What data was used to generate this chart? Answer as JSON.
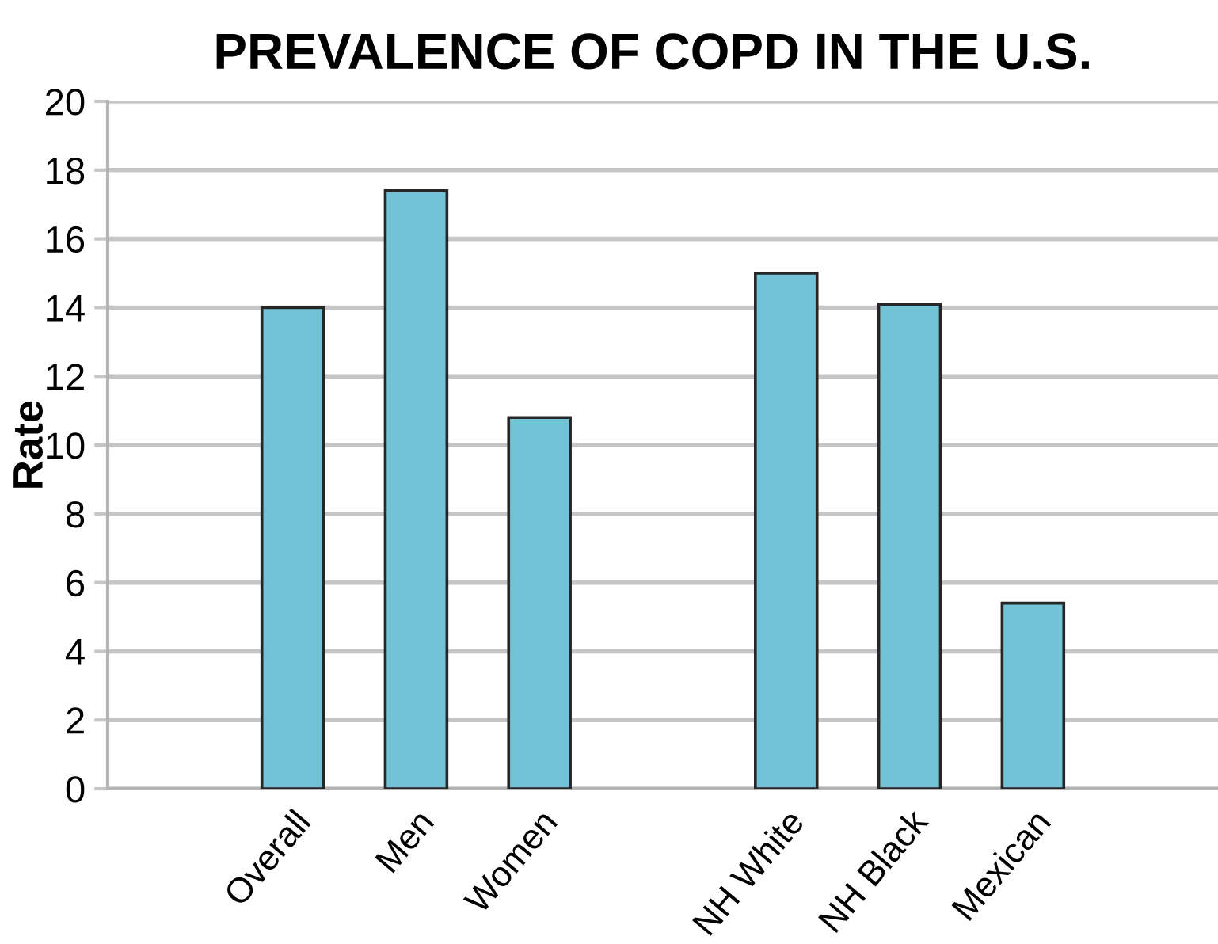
{
  "chart_data": {
    "type": "bar",
    "title": "PREVALENCE OF COPD IN THE U.S.",
    "ylabel": "Rate",
    "categories": [
      null,
      "Overall",
      "Men",
      "Women",
      null,
      "NH White",
      "NH Black",
      "Mexican",
      null
    ],
    "values": [
      null,
      14.0,
      17.4,
      10.8,
      null,
      15.0,
      14.1,
      5.4,
      null
    ],
    "color": "#72c2d8",
    "ylim": [
      0,
      20
    ],
    "yticks": [
      0,
      2,
      4,
      6,
      8,
      10,
      12,
      14,
      16,
      18,
      20
    ],
    "grid": "y"
  }
}
